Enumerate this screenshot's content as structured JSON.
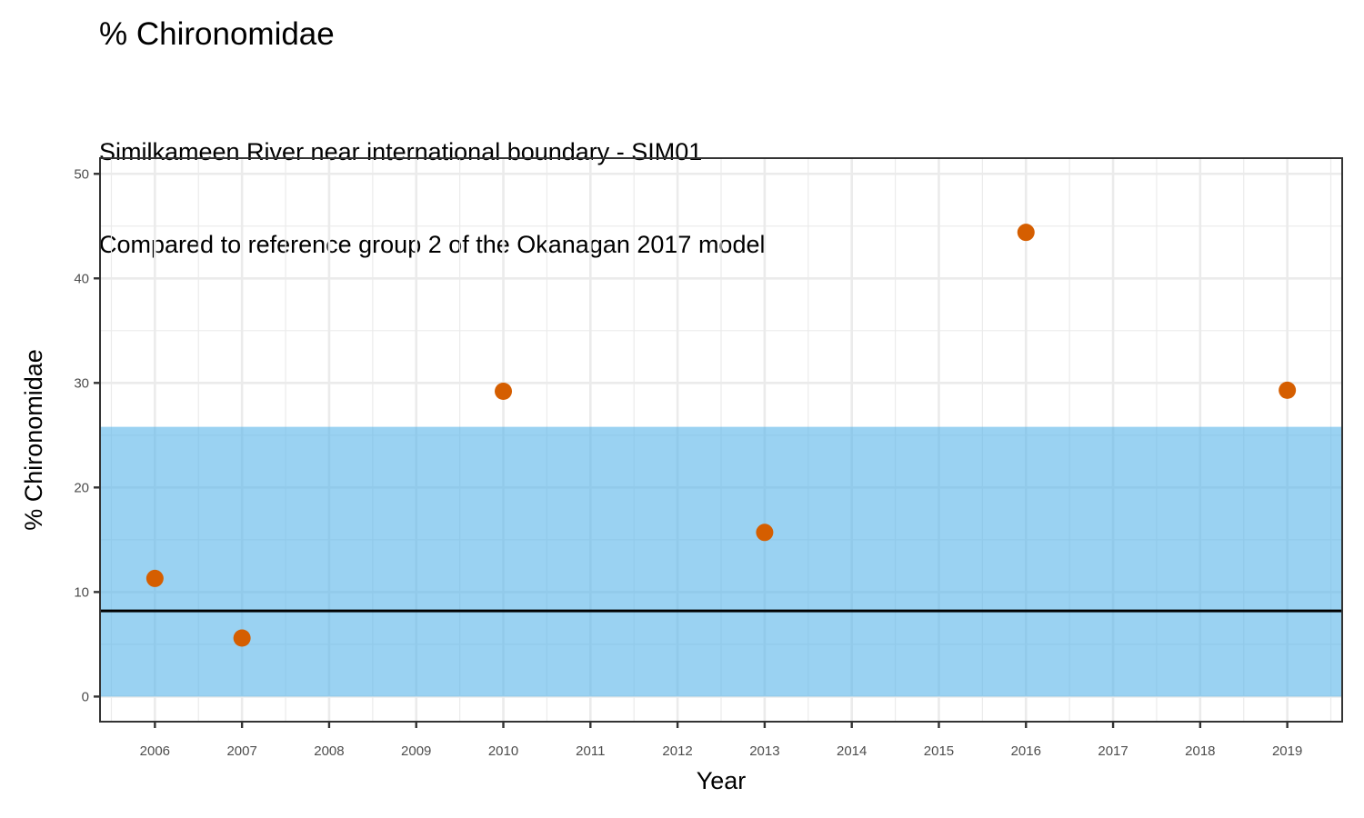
{
  "chart_data": {
    "type": "scatter",
    "title": "% Chironomidae",
    "subtitle_lines": [
      "Similkameen River near international boundary - SIM01",
      "Compared to reference group 2 of the Okanagan 2017 model"
    ],
    "xlabel": "Year",
    "ylabel": "% Chironomidae",
    "xlim": [
      2005.37,
      2019.63
    ],
    "ylim": [
      -2.4,
      51.5
    ],
    "x_ticks": [
      2006,
      2007,
      2008,
      2009,
      2010,
      2011,
      2012,
      2013,
      2014,
      2015,
      2016,
      2017,
      2018,
      2019
    ],
    "y_ticks": [
      0,
      10,
      20,
      30,
      40,
      50
    ],
    "grid": true,
    "points": [
      {
        "x": 2006,
        "y": 11.3
      },
      {
        "x": 2007,
        "y": 5.6
      },
      {
        "x": 2010,
        "y": 29.2
      },
      {
        "x": 2013,
        "y": 15.7
      },
      {
        "x": 2016,
        "y": 44.4
      },
      {
        "x": 2019,
        "y": 29.3
      }
    ],
    "reference_band": {
      "ymin": 0,
      "ymax": 25.8,
      "color": "#56B4E9",
      "opacity": 0.6
    },
    "reference_line": {
      "y": 8.2,
      "color": "#000000"
    },
    "point_color": "#D55E00",
    "legend": "none"
  }
}
